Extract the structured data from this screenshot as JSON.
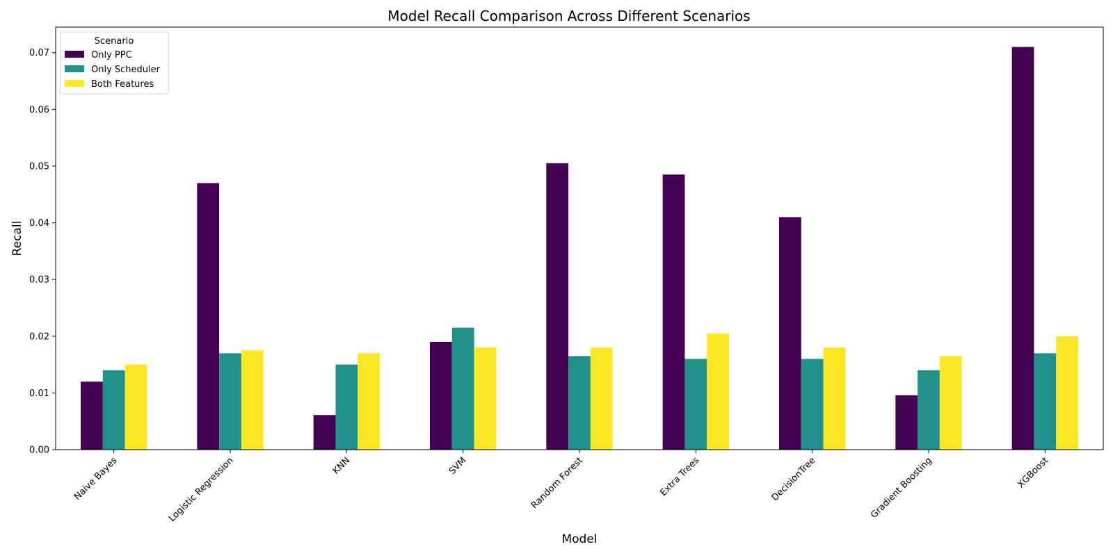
{
  "chart_data": {
    "type": "bar",
    "title": "Model Recall Comparison Across Different Scenarios",
    "xlabel": "Model",
    "ylabel": "Recall",
    "ylim": [
      0,
      0.0745
    ],
    "yticks": [
      0.0,
      0.01,
      0.02,
      0.03,
      0.04,
      0.05,
      0.06,
      0.07
    ],
    "ytick_labels": [
      "0.00",
      "0.01",
      "0.02",
      "0.03",
      "0.04",
      "0.05",
      "0.06",
      "0.07"
    ],
    "grid": false,
    "legend_title": "Scenario",
    "legend_position": "top-left",
    "categories": [
      "Naive Bayes",
      "Logistic Regression",
      "KNN",
      "SVM",
      "Random Forest",
      "Extra Trees",
      "DecisionTree",
      "Gradient Boosting",
      "XGBoost"
    ],
    "series": [
      {
        "name": "Only PPC",
        "color": "#440154",
        "values": [
          0.012,
          0.047,
          0.0061,
          0.019,
          0.0505,
          0.0485,
          0.041,
          0.0096,
          0.071
        ]
      },
      {
        "name": "Only Scheduler",
        "color": "#21918c",
        "values": [
          0.014,
          0.017,
          0.015,
          0.0215,
          0.0165,
          0.016,
          0.016,
          0.014,
          0.017
        ]
      },
      {
        "name": "Both Features",
        "color": "#fde725",
        "values": [
          0.015,
          0.0175,
          0.017,
          0.018,
          0.018,
          0.0205,
          0.018,
          0.0165,
          0.02
        ]
      }
    ]
  }
}
